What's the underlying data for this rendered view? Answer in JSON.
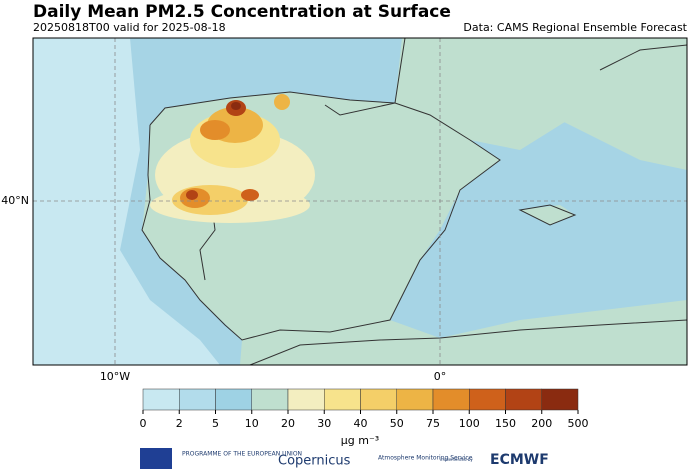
{
  "header": {
    "title": "Daily Mean PM2.5 Concentration at Surface",
    "run": "20250818T00 valid for 2025-08-18",
    "source": "Data: CAMS Regional Ensemble Forecast"
  },
  "axes": {
    "lat_label": "40°N",
    "lon_labels": [
      "10°W",
      "0°"
    ]
  },
  "colorbar": {
    "ticks": [
      0,
      2,
      5,
      10,
      20,
      30,
      40,
      50,
      75,
      100,
      150,
      200,
      500
    ],
    "colors": [
      "#c8e8f1",
      "#b2dceb",
      "#9ed2e4",
      "#bfdfcf",
      "#f3eec0",
      "#f7e38c",
      "#f4cf68",
      "#edb445",
      "#e38d2a",
      "#cf611b",
      "#b24315",
      "#8a2b10"
    ],
    "unit": "μg m⁻³"
  },
  "footer": {
    "eu": "PROGRAMME OF THE EUROPEAN UNION",
    "copernicus": "Copernicus",
    "cams": "Atmosphere Monitoring Service",
    "impl": "implemented by",
    "ecmwf": "ECMWF"
  }
}
